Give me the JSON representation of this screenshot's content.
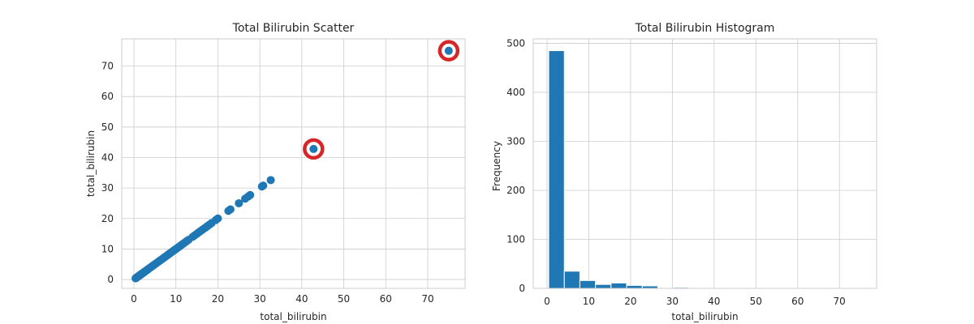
{
  "chart_data": [
    {
      "type": "scatter",
      "title": "Total Bilirubin Scatter",
      "xlabel": "total_bilirubin",
      "ylabel": "total_bilirubin",
      "xlim": [
        -2.9,
        78.9
      ],
      "ylim": [
        -2.9,
        78.9
      ],
      "xticks": [
        0,
        10,
        20,
        30,
        40,
        50,
        60,
        70
      ],
      "yticks": [
        0,
        10,
        20,
        30,
        40,
        50,
        60,
        70
      ],
      "grid": true,
      "point_color": "#1f77b4",
      "highlight_color": "#d62728",
      "x": [
        0.4,
        0.5,
        0.6,
        0.7,
        0.8,
        0.9,
        1.0,
        1.1,
        1.2,
        1.3,
        1.4,
        1.5,
        1.6,
        1.7,
        1.8,
        1.9,
        2.0,
        2.2,
        2.4,
        2.6,
        2.8,
        3.0,
        3.2,
        3.4,
        3.6,
        3.8,
        4.0,
        4.2,
        4.4,
        4.6,
        4.8,
        5.0,
        5.3,
        5.6,
        5.9,
        6.2,
        6.5,
        6.8,
        7.1,
        7.4,
        7.7,
        8.0,
        8.3,
        8.6,
        8.9,
        9.2,
        9.5,
        9.8,
        10.2,
        10.6,
        11.0,
        11.4,
        11.8,
        12.2,
        12.6,
        13.0,
        14.0,
        14.5,
        15.0,
        15.5,
        16.0,
        16.5,
        17.0,
        17.5,
        18.0,
        18.5,
        19.5,
        20.0,
        22.5,
        23.0,
        25.0,
        26.5,
        27.2,
        27.7,
        30.5,
        30.8,
        32.6,
        42.8,
        75.0
      ],
      "y": [
        0.4,
        0.5,
        0.6,
        0.7,
        0.8,
        0.9,
        1.0,
        1.1,
        1.2,
        1.3,
        1.4,
        1.5,
        1.6,
        1.7,
        1.8,
        1.9,
        2.0,
        2.2,
        2.4,
        2.6,
        2.8,
        3.0,
        3.2,
        3.4,
        3.6,
        3.8,
        4.0,
        4.2,
        4.4,
        4.6,
        4.8,
        5.0,
        5.3,
        5.6,
        5.9,
        6.2,
        6.5,
        6.8,
        7.1,
        7.4,
        7.7,
        8.0,
        8.3,
        8.6,
        8.9,
        9.2,
        9.5,
        9.8,
        10.2,
        10.6,
        11.0,
        11.4,
        11.8,
        12.2,
        12.6,
        13.0,
        14.0,
        14.5,
        15.0,
        15.5,
        16.0,
        16.5,
        17.0,
        17.5,
        18.0,
        18.5,
        19.5,
        20.0,
        22.5,
        23.0,
        25.0,
        26.5,
        27.2,
        27.7,
        30.5,
        30.8,
        32.6,
        42.8,
        75.0
      ],
      "highlighted": [
        {
          "x": 42.8,
          "y": 42.8
        },
        {
          "x": 75.0,
          "y": 75.0
        }
      ]
    },
    {
      "type": "bar",
      "title": "Total Bilirubin Histogram",
      "xlabel": "total_bilirubin",
      "ylabel": "Frequency",
      "xlim": [
        -3.3,
        78.9
      ],
      "ylim": [
        0,
        509
      ],
      "xticks": [
        0,
        10,
        20,
        30,
        40,
        50,
        60,
        70
      ],
      "yticks": [
        0,
        100,
        200,
        300,
        400,
        500
      ],
      "grid": true,
      "bar_color": "#1f77b4",
      "bin_edges": [
        0.4,
        4.13,
        7.86,
        11.59,
        15.32,
        19.05,
        22.78,
        26.51,
        30.24,
        33.97,
        37.7,
        41.43,
        45.16,
        48.89,
        52.62,
        56.35,
        60.08,
        63.81,
        67.54,
        71.27,
        75.0
      ],
      "values": [
        485,
        35,
        16,
        8,
        11,
        6,
        5,
        0,
        2,
        0,
        0,
        1,
        0,
        0,
        0,
        0,
        0,
        0,
        0,
        1
      ]
    }
  ]
}
